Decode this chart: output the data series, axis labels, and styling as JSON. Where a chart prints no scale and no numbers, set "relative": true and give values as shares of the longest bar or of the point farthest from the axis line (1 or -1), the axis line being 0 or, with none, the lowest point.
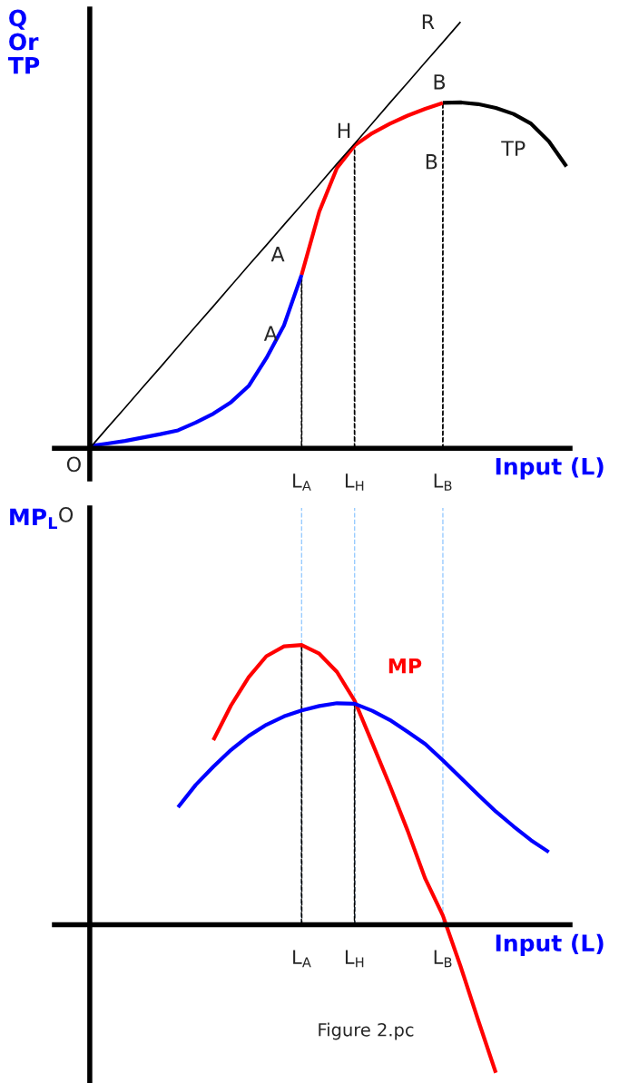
{
  "chart_data": [
    {
      "type": "line",
      "relative": true,
      "ylabel": "Q\nOr\nTP",
      "xlabel": "Input (L)",
      "tick_labels": "x",
      "categories": [
        null,
        null,
        null,
        null,
        null,
        null,
        null,
        null,
        null,
        null,
        null,
        null,
        "L$_{A}$",
        null,
        null,
        "L$_{H}$",
        null,
        null,
        null,
        null,
        "L$_{B}$",
        null,
        null,
        null,
        null,
        null,
        null,
        null
      ],
      "series": [
        {
          "color": "#0000ff",
          "values": [
            0.005,
            0.011,
            0.017,
            0.025,
            0.033,
            0.042,
            0.06,
            0.081,
            0.108,
            0.146,
            0.211,
            0.288,
            0.407,
            null,
            null,
            null,
            null,
            null,
            null,
            null,
            null,
            null,
            null,
            null,
            null,
            null,
            null,
            null
          ]
        },
        {
          "color": "#ff0000",
          "values": [
            null,
            null,
            null,
            null,
            null,
            null,
            null,
            null,
            null,
            null,
            null,
            null,
            0.407,
            0.555,
            0.657,
            0.71,
            0.739,
            0.761,
            0.78,
            0.796,
            0.81,
            null,
            null,
            null,
            null,
            null,
            null,
            null
          ]
        },
        {
          "color": "#000000",
          "values": [
            null,
            null,
            null,
            null,
            null,
            null,
            null,
            null,
            null,
            null,
            null,
            null,
            null,
            null,
            null,
            null,
            null,
            null,
            null,
            null,
            0.81,
            0.811,
            0.807,
            0.798,
            0.784,
            0.761,
            0.72,
            0.661
          ]
        },
        {
          "color": "#000000",
          "values": [
            0,
            0.048,
            0.095,
            0.143,
            0.19,
            0.238,
            0.286,
            0.333,
            0.381,
            0.429,
            0.476,
            0.524,
            0.571,
            0.619,
            0.667,
            0.714,
            0.762,
            0.81,
            0.857,
            0.905,
            0.952,
            1.0,
            null,
            null,
            null,
            null,
            null,
            null
          ]
        },
        {
          "type": "bar",
          "line_style": "dashed",
          "color": "#000000",
          "values": [
            null,
            null,
            null,
            null,
            null,
            null,
            null,
            null,
            null,
            null,
            null,
            null,
            0.407,
            null,
            null,
            0.71,
            null,
            null,
            null,
            null,
            0.81,
            null,
            null,
            null,
            null,
            null,
            null,
            null
          ]
        }
      ],
      "annotations": [
        "R",
        "B",
        "H",
        "B",
        "TP",
        "A",
        "A",
        "O"
      ]
    },
    {
      "type": "line",
      "relative": true,
      "ylabel": "MP$_{L}$",
      "xlabel": "Input (L)",
      "tick_labels": "x",
      "categories": [
        null,
        null,
        null,
        null,
        null,
        null,
        null,
        null,
        null,
        null,
        null,
        null,
        "L$_{A}$",
        null,
        null,
        "L$_{H}$",
        null,
        null,
        null,
        null,
        "L$_{B}$",
        null,
        null,
        null,
        null,
        null,
        null,
        null
      ],
      "ref_lines": [
        {
          "axis": "x",
          "value": "L$_{A}$",
          "color": "#99ccff",
          "line_style": "dashed"
        },
        {
          "axis": "x",
          "value": "L$_{H}$",
          "color": "#99ccff",
          "line_style": "dashed"
        },
        {
          "axis": "x",
          "value": "L$_{B}$",
          "color": "#99ccff",
          "line_style": "dashed"
        }
      ],
      "series": [
        {
          "name": "MP",
          "color": "#ff0000",
          "values": [
            null,
            null,
            null,
            null,
            null,
            null,
            null,
            0.66,
            0.784,
            0.885,
            0.96,
            0.995,
            1.0,
            0.969,
            0.904,
            0.801,
            0.65,
            0.497,
            0.337,
            0.165,
            0.033,
            -0.148,
            -0.341,
            -0.529,
            null,
            null,
            null,
            null
          ]
        },
        {
          "color": "#0000ff",
          "values": [
            null,
            null,
            null,
            null,
            null,
            0.42,
            0.5,
            0.565,
            0.625,
            0.675,
            0.715,
            0.745,
            0.766,
            0.782,
            0.792,
            0.79,
            0.765,
            0.732,
            0.69,
            0.646,
            0.588,
            0.526,
            0.465,
            0.405,
            0.352,
            0.302,
            0.26,
            null
          ]
        },
        {
          "type": "bar",
          "line_style": "dashed",
          "color": "#000000",
          "values": [
            null,
            null,
            null,
            null,
            null,
            null,
            null,
            null,
            null,
            null,
            null,
            null,
            1.0,
            null,
            null,
            0.79,
            null,
            null,
            null,
            null,
            null,
            null,
            null,
            null,
            null,
            null,
            null,
            null
          ]
        }
      ],
      "annotations": [
        "O",
        "Figure 2.pc"
      ]
    }
  ]
}
